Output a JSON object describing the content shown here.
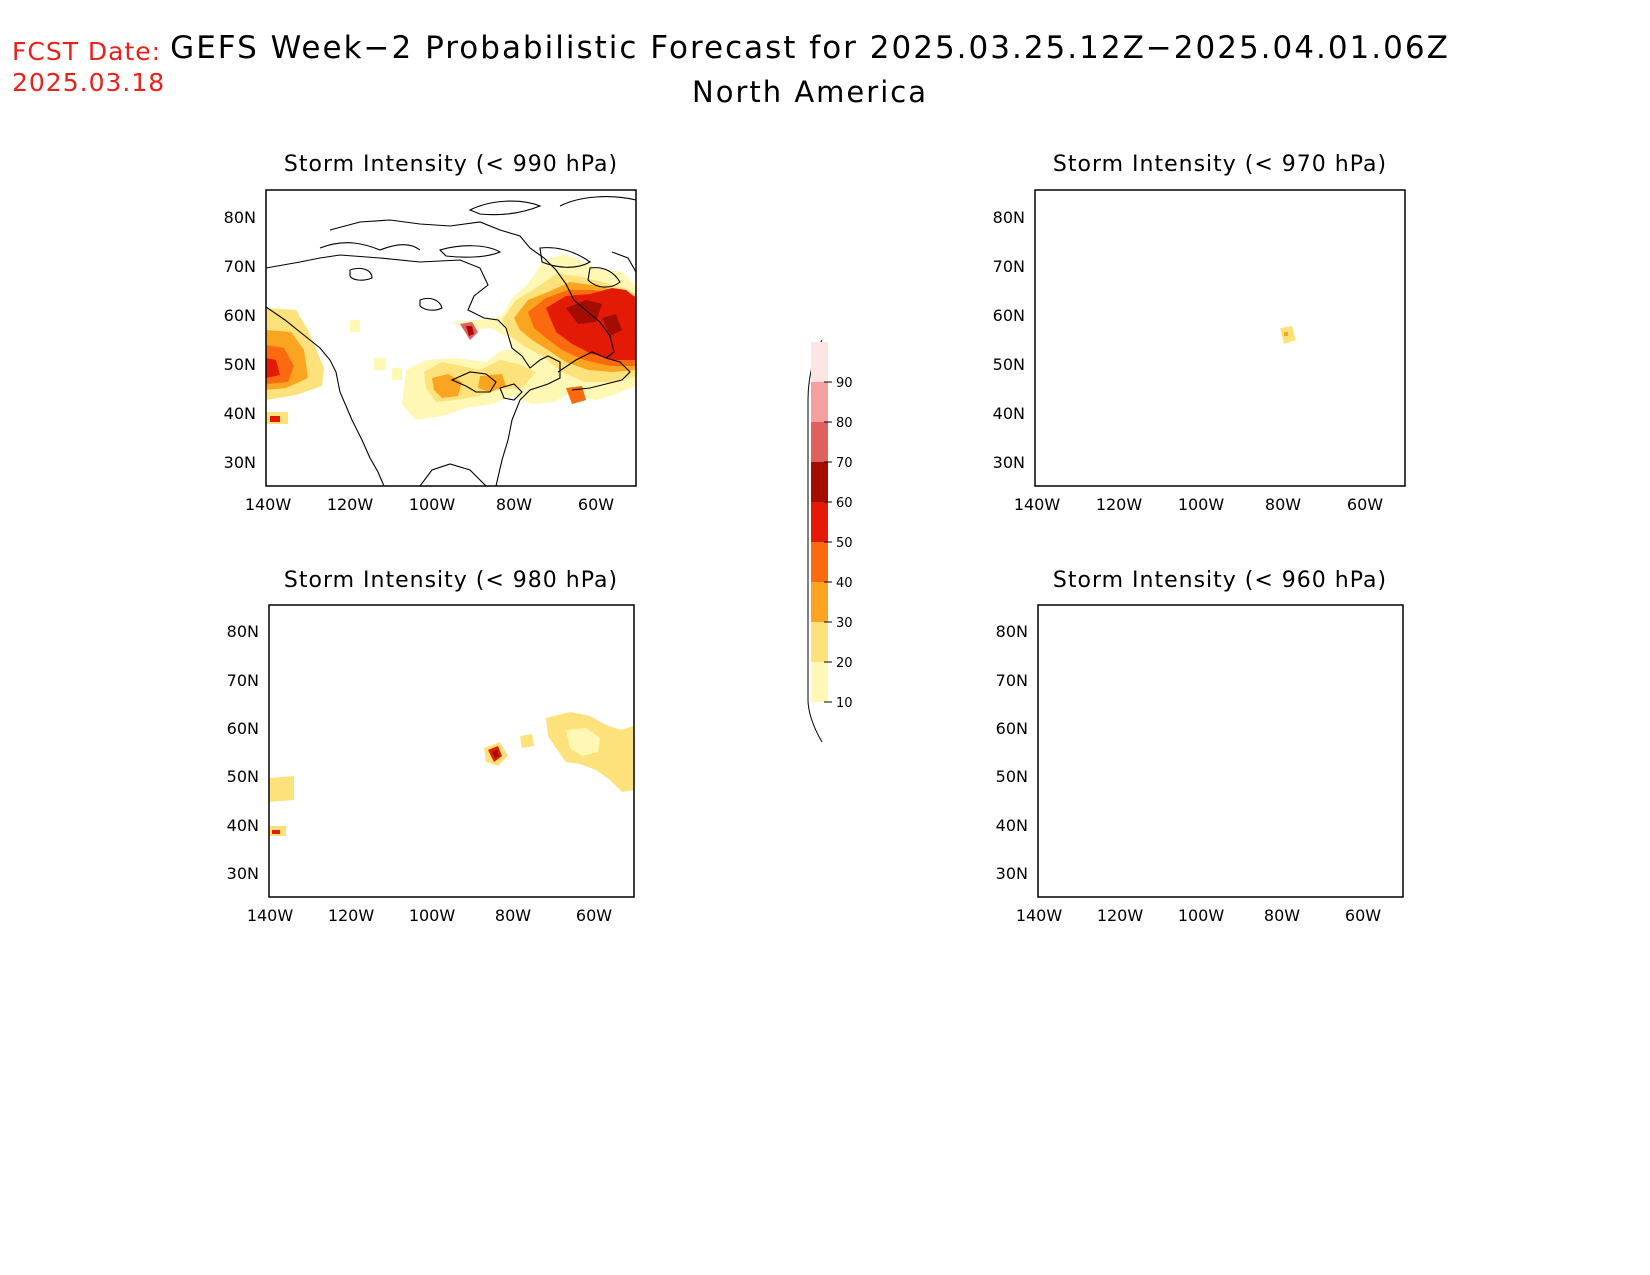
{
  "header": {
    "fcst_label": "FCST Date:",
    "fcst_date": "2025.03.18",
    "title": "GEFS Week−2 Probabilistic Forecast for 2025.03.25.12Z−2025.04.01.06Z",
    "subtitle": "North America"
  },
  "colors": {
    "fcst_text": "#e8211b",
    "scale": [
      "#fff8b4",
      "#fde27c",
      "#fba41f",
      "#fb6a0f",
      "#e31a05",
      "#a40c00",
      "#e06060",
      "#f5a0a0",
      "#fde4e4"
    ]
  },
  "panels": [
    {
      "title": "Storm Intensity (< 990 hPa)",
      "lat_ticks": [
        "80N",
        "70N",
        "60N",
        "50N",
        "40N",
        "30N"
      ],
      "lon_ticks": [
        "140W",
        "120W",
        "100W",
        "80W",
        "60W"
      ],
      "coverage": "widespread"
    },
    {
      "title": "Storm Intensity (< 970 hPa)",
      "lat_ticks": [
        "80N",
        "70N",
        "60N",
        "50N",
        "40N",
        "30N"
      ],
      "lon_ticks": [
        "140W",
        "120W",
        "100W",
        "80W",
        "60W"
      ],
      "coverage": "trace"
    },
    {
      "title": "Storm Intensity (< 980 hPa)",
      "lat_ticks": [
        "80N",
        "70N",
        "60N",
        "50N",
        "40N",
        "30N"
      ],
      "lon_ticks": [
        "140W",
        "120W",
        "100W",
        "80W",
        "60W"
      ],
      "coverage": "scattered"
    },
    {
      "title": "Storm Intensity (< 960 hPa)",
      "lat_ticks": [
        "80N",
        "70N",
        "60N",
        "50N",
        "40N",
        "30N"
      ],
      "lon_ticks": [
        "140W",
        "120W",
        "100W",
        "80W",
        "60W"
      ],
      "coverage": "none"
    }
  ],
  "colorbar": {
    "labels": [
      "10",
      "20",
      "30",
      "40",
      "50",
      "60",
      "70",
      "80",
      "90"
    ]
  }
}
